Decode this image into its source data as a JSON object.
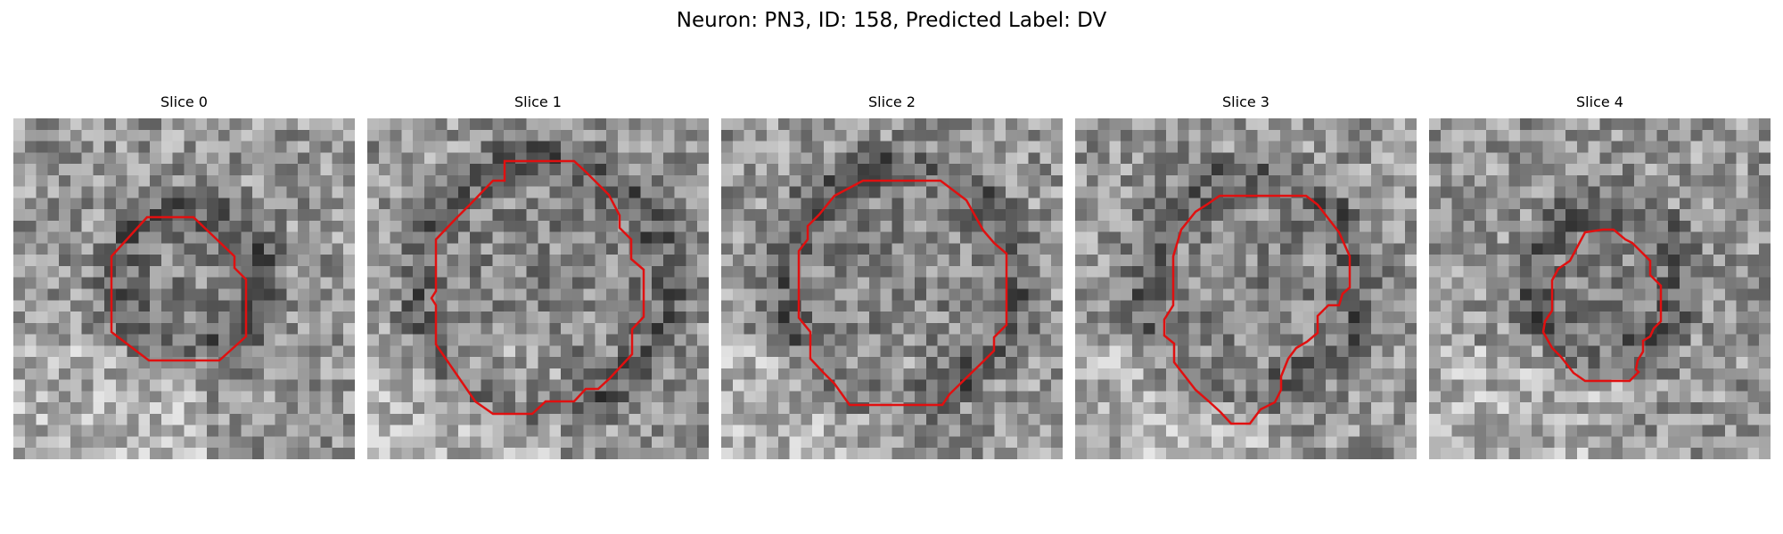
{
  "figure": {
    "title": "Neuron: PN3, ID: 158, Predicted Label: DV"
  },
  "contour_color": "#e01010",
  "colormap": "gray",
  "panels": [
    {
      "title": "Slice 0",
      "seed": 11,
      "contour_radius": 0.18,
      "shape": "octagon-small"
    },
    {
      "title": "Slice 1",
      "seed": 23,
      "contour_radius": 0.33,
      "shape": "octagon-large"
    },
    {
      "title": "Slice 2",
      "seed": 37,
      "contour_radius": 0.31,
      "shape": "octagon-large"
    },
    {
      "title": "Slice 3",
      "seed": 51,
      "contour_radius": 0.28,
      "shape": "irregular"
    },
    {
      "title": "Slice 4",
      "seed": 67,
      "contour_radius": 0.18,
      "shape": "irregular-small"
    }
  ]
}
